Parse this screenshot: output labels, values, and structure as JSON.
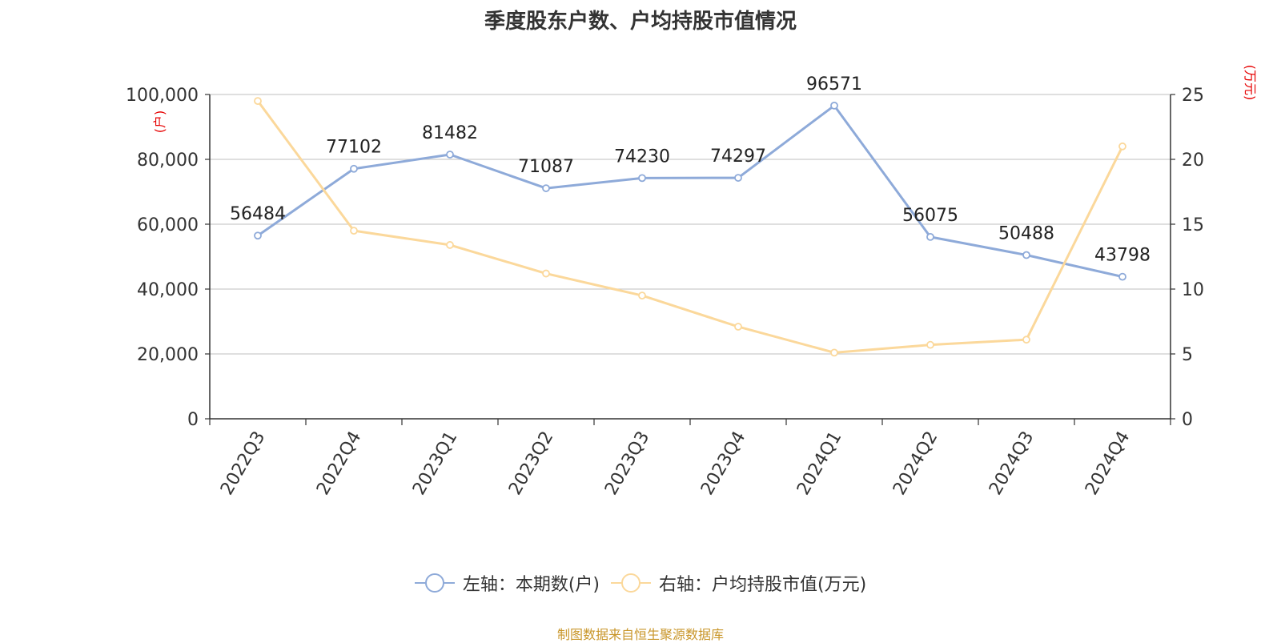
{
  "title": "季度股东户数、户均持股市值情况",
  "source": "制图数据来自恒生聚源数据库",
  "chart_data": {
    "type": "line",
    "categories": [
      "2022Q3",
      "2022Q4",
      "2023Q1",
      "2023Q2",
      "2023Q3",
      "2023Q4",
      "2024Q1",
      "2024Q2",
      "2024Q3",
      "2024Q4"
    ],
    "left_axis": {
      "unit_label": "(户)",
      "range": [
        0,
        100000
      ],
      "ticks": [
        "0",
        "20,000",
        "40,000",
        "60,000",
        "80,000",
        "100,000"
      ]
    },
    "right_axis": {
      "unit_label": "(万元)",
      "range": [
        0,
        25
      ],
      "ticks": [
        "0",
        "5",
        "10",
        "15",
        "20",
        "25"
      ]
    },
    "grid": true,
    "legend_position": "bottom",
    "series": [
      {
        "name": "左轴：本期数(户)",
        "axis": "left",
        "color": "#8eaad9",
        "values": [
          56484,
          77102,
          81482,
          71087,
          74230,
          74297,
          96571,
          56075,
          50488,
          43798
        ],
        "labels": [
          "56484",
          "77102",
          "81482",
          "71087",
          "74230",
          "74297",
          "96571",
          "56075",
          "50488",
          "43798"
        ]
      },
      {
        "name": "右轴：户均持股市值(万元)",
        "axis": "right",
        "color": "#fbd89b",
        "values": [
          24.5,
          14.5,
          13.4,
          11.2,
          9.5,
          7.1,
          5.1,
          5.7,
          6.1,
          21.0
        ]
      }
    ]
  }
}
